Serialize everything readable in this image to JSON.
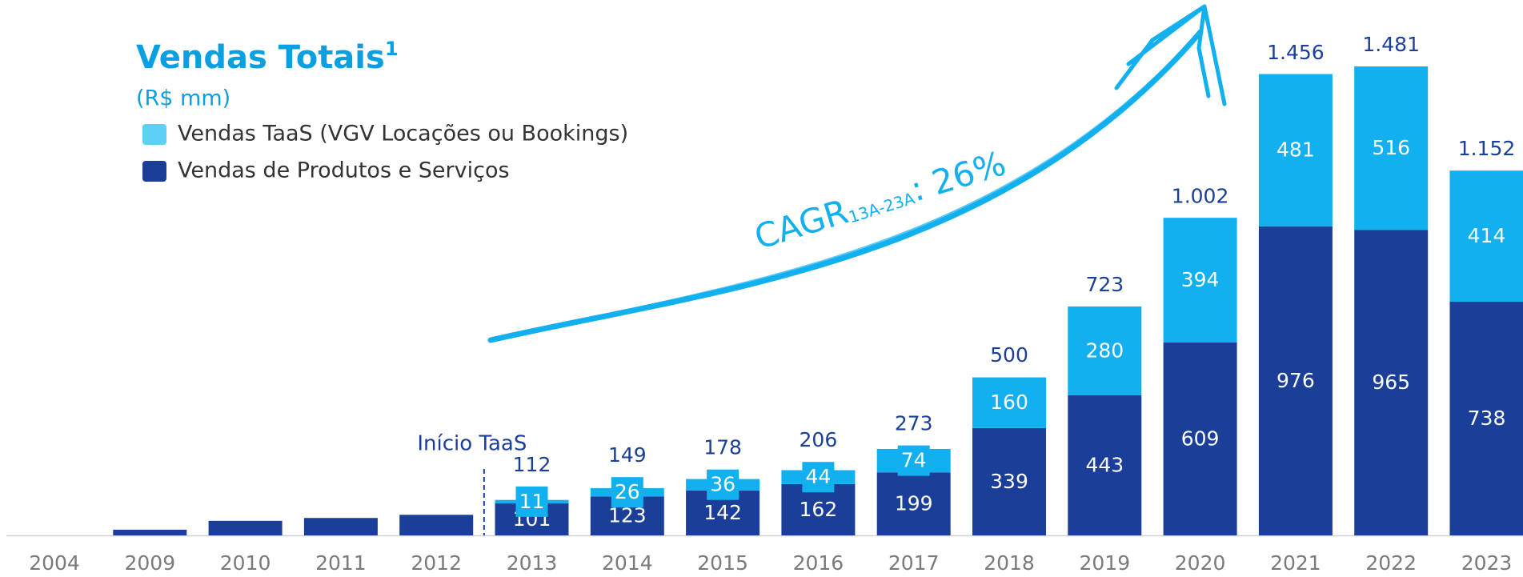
{
  "chart_data": {
    "type": "stacked_bar",
    "title": "Vendas Totais",
    "title_note": "1",
    "subtitle": "(R$ mm)",
    "categories": [
      "2004",
      "2009",
      "2010",
      "2011",
      "2012",
      "2013",
      "2014",
      "2015",
      "2016",
      "2017",
      "2018",
      "2019",
      "2020",
      "2021",
      "2022",
      "2023"
    ],
    "series": [
      {
        "name": "Vendas de Produtos e Serviços",
        "color": "#1b3f99",
        "values": [
          null,
          18,
          46,
          55,
          65,
          101,
          123,
          142,
          162,
          199,
          339,
          443,
          609,
          976,
          965,
          738
        ],
        "value_labels": [
          null,
          null,
          null,
          null,
          null,
          "101",
          "123",
          "142",
          "162",
          "199",
          "339",
          "443",
          "609",
          "976",
          "965",
          "738"
        ]
      },
      {
        "name": "Vendas TaaS (VGV Locações ou Bookings)",
        "color": "#12b0ef",
        "legend_color": "#5dd0f5",
        "values": [
          null,
          null,
          null,
          null,
          null,
          11,
          26,
          36,
          44,
          74,
          160,
          280,
          394,
          481,
          516,
          414
        ],
        "value_labels": [
          null,
          null,
          null,
          null,
          null,
          "11",
          "26",
          "36",
          "44",
          "74",
          "160",
          "280",
          "394",
          "481",
          "516",
          "414"
        ]
      }
    ],
    "totals": {
      "values": [
        null,
        null,
        null,
        null,
        null,
        112,
        149,
        178,
        206,
        273,
        500,
        723,
        1002,
        1456,
        1481,
        1152
      ],
      "value_labels": [
        null,
        null,
        null,
        null,
        null,
        "112",
        "149",
        "178",
        "206",
        "273",
        "500",
        "723",
        "1.002",
        "1.456",
        "1.481",
        "1.152"
      ]
    },
    "annotations": {
      "taas_start": {
        "label": "Início TaaS",
        "category": "2013"
      },
      "cagr": {
        "label": "CAGR",
        "subscript": "13A-23A",
        "value": ": 26%"
      }
    }
  }
}
